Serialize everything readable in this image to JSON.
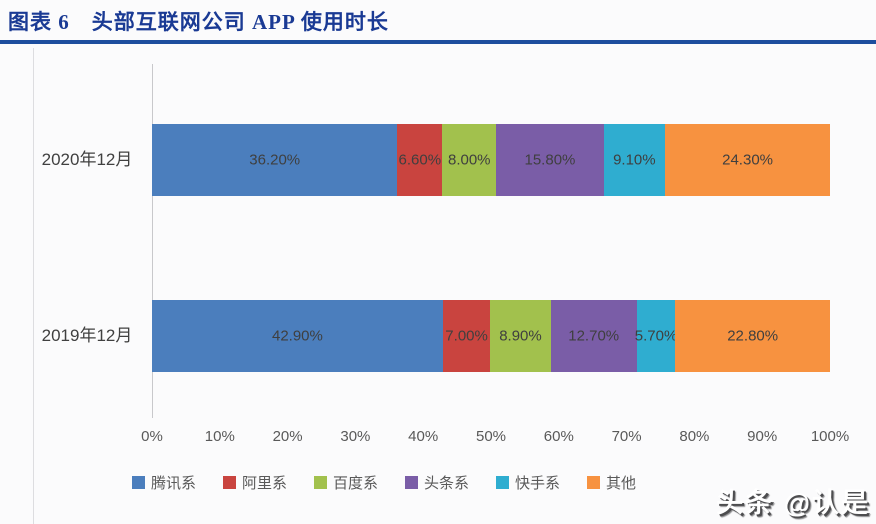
{
  "header": {
    "title": "图表 6　头部互联网公司 APP 使用时长",
    "accent_color": "#1d4e9e"
  },
  "watermark": {
    "text": "头条 @认是"
  },
  "chart_data": {
    "type": "bar",
    "orientation": "horizontal",
    "stacked": true,
    "grid": false,
    "legend_position": "bottom",
    "categories": [
      "2020年12月",
      "2019年12月"
    ],
    "series": [
      {
        "name": "腾讯系",
        "color": "#4b7ebd",
        "values": [
          36.2,
          42.9
        ]
      },
      {
        "name": "阿里系",
        "color": "#c9443f",
        "values": [
          6.6,
          7.0
        ]
      },
      {
        "name": "百度系",
        "color": "#a2c14d",
        "values": [
          8.0,
          8.9
        ]
      },
      {
        "name": "头条系",
        "color": "#7a5da7",
        "values": [
          15.8,
          12.7
        ]
      },
      {
        "name": "快手系",
        "color": "#2fadd0",
        "values": [
          9.1,
          5.7
        ]
      },
      {
        "name": "其他",
        "color": "#f79240",
        "values": [
          24.3,
          22.8
        ]
      }
    ],
    "value_suffix": "%",
    "xlim": [
      0,
      100
    ],
    "x_ticks": [
      "0%",
      "10%",
      "20%",
      "30%",
      "40%",
      "50%",
      "60%",
      "70%",
      "80%",
      "90%",
      "100%"
    ],
    "label_text_color": "#3f3f3f",
    "axis_text_color": "#595959"
  }
}
